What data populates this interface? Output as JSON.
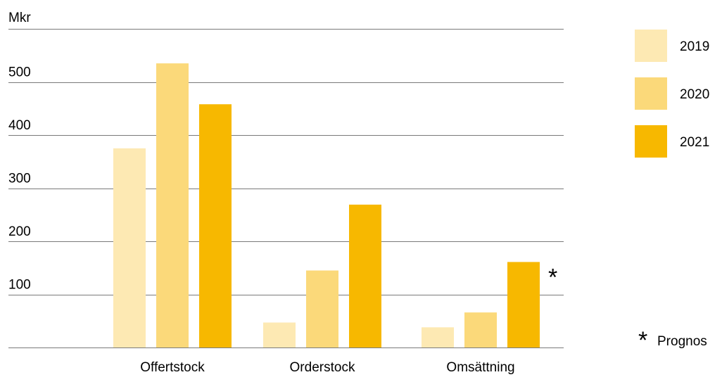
{
  "chart_data": {
    "type": "bar",
    "title": "",
    "xlabel": "",
    "ylabel": "Mkr",
    "ylim": [
      0,
      600
    ],
    "yticks": [
      100,
      200,
      300,
      400,
      500
    ],
    "categories": [
      "Offertstock",
      "Orderstock",
      "Omsättning"
    ],
    "series": [
      {
        "name": "2019",
        "color": "#fde9b3",
        "values": [
          375,
          47,
          38
        ]
      },
      {
        "name": "2020",
        "color": "#fbd97a",
        "values": [
          535,
          145,
          66
        ]
      },
      {
        "name": "2021",
        "color": "#f7b800",
        "values": [
          458,
          269,
          161
        ]
      }
    ],
    "grid": true,
    "legend": "right",
    "annotation": {
      "marker": "*",
      "category": "Omsättning",
      "series": "2021"
    },
    "footnote": {
      "marker": "*",
      "text": "Prognos"
    }
  }
}
